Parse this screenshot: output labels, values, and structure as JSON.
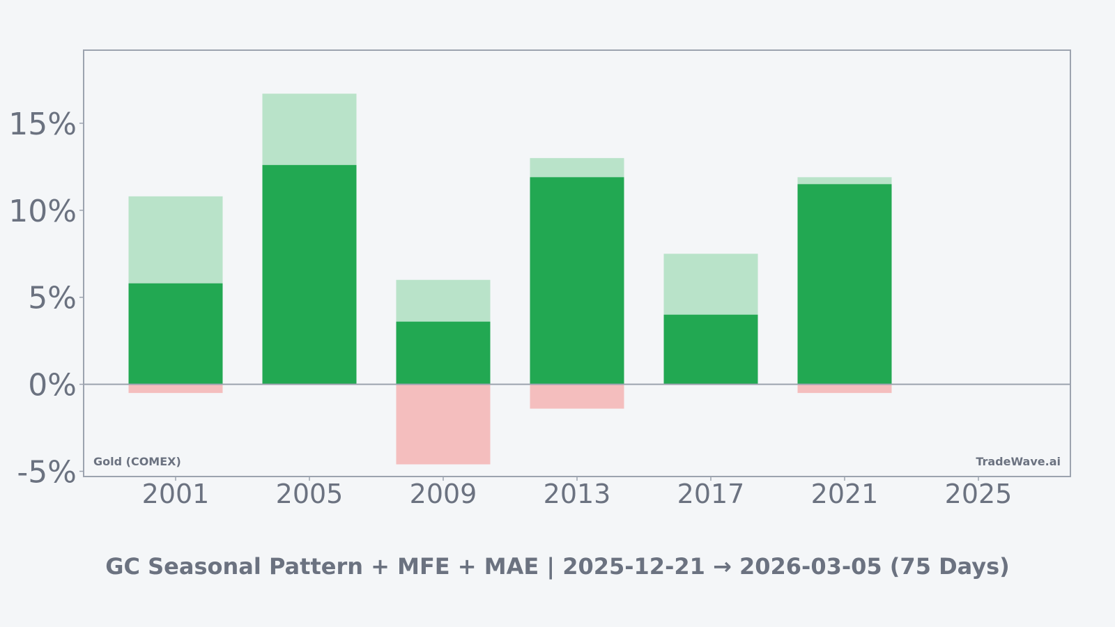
{
  "chart_data": {
    "type": "bar",
    "title": "GC Seasonal Pattern + MFE + MAE | 2025-12-21 → 2026-03-05 (75 Days)",
    "xlabel": "",
    "ylabel": "",
    "x_ticks": [
      "2001",
      "2005",
      "2009",
      "2013",
      "2017",
      "2021",
      "2025"
    ],
    "y_ticks": [
      "-5%",
      "0%",
      "5%",
      "10%",
      "15%"
    ],
    "y_tick_values": [
      -5,
      0,
      5,
      10,
      15
    ],
    "x_tick_values": [
      2001,
      2005,
      2009,
      2013,
      2017,
      2021,
      2025
    ],
    "ylim": [
      -5.3,
      19.2
    ],
    "xlim": [
      1998.25,
      2027.75
    ],
    "grid": false,
    "categories": [
      2001,
      2005,
      2009,
      2013,
      2017,
      2021
    ],
    "series": [
      {
        "key": "mfe",
        "values": [
          10.8,
          16.7,
          6.0,
          13.0,
          7.5,
          11.9
        ],
        "color": "#b9e3c9"
      },
      {
        "key": "return",
        "values": [
          5.8,
          12.6,
          3.6,
          11.9,
          4.0,
          11.5
        ],
        "color": "#22a852"
      },
      {
        "key": "mae",
        "values": [
          -0.5,
          0.0,
          -4.6,
          -1.4,
          0.0,
          -0.5
        ],
        "color": "#f4bebe"
      }
    ],
    "annotations": {
      "left": "Gold (COMEX)",
      "right": "TradeWave.ai"
    }
  },
  "colors": {
    "background": "#f4f6f8",
    "axis": "#9ca3af",
    "text": "#6b7280"
  }
}
